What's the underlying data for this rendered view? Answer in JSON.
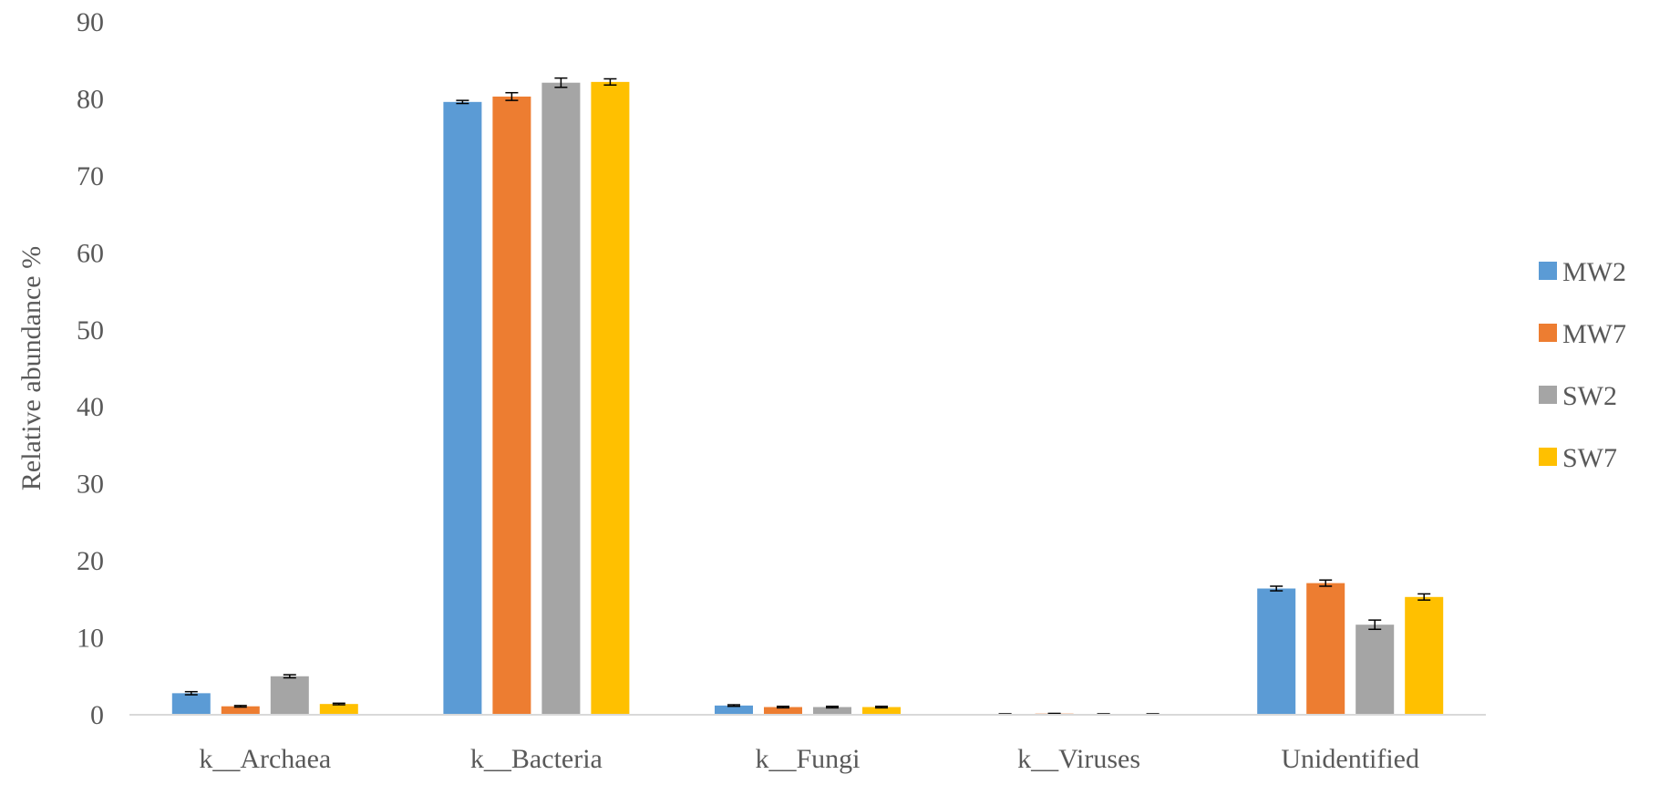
{
  "chart_data": {
    "type": "bar",
    "title": "",
    "xlabel": "",
    "ylabel": "Relative abundance %",
    "ylim": [
      0,
      90
    ],
    "yticks": [
      0,
      10,
      20,
      30,
      40,
      50,
      60,
      70,
      80,
      90
    ],
    "grid": false,
    "legend_position": "right",
    "categories": [
      "k__Archaea",
      "k__Bacteria",
      "k__Fungi",
      "k__Viruses",
      "Unidentified"
    ],
    "series": [
      {
        "name": "MW2",
        "color": "#5B9BD5",
        "values": [
          2.8,
          79.6,
          1.2,
          0.1,
          16.4
        ],
        "errors": [
          0.2,
          0.2,
          0.1,
          0.02,
          0.3
        ]
      },
      {
        "name": "MW7",
        "color": "#ED7D31",
        "values": [
          1.1,
          80.3,
          1.0,
          0.15,
          17.1
        ],
        "errors": [
          0.1,
          0.5,
          0.1,
          0.03,
          0.4
        ]
      },
      {
        "name": "SW2",
        "color": "#A5A5A5",
        "values": [
          5.0,
          82.1,
          1.0,
          0.1,
          11.7
        ],
        "errors": [
          0.2,
          0.6,
          0.1,
          0.02,
          0.6
        ]
      },
      {
        "name": "SW7",
        "color": "#FFC000",
        "values": [
          1.4,
          82.2,
          1.0,
          0.1,
          15.3
        ],
        "errors": [
          0.1,
          0.4,
          0.1,
          0.02,
          0.4
        ]
      }
    ]
  }
}
